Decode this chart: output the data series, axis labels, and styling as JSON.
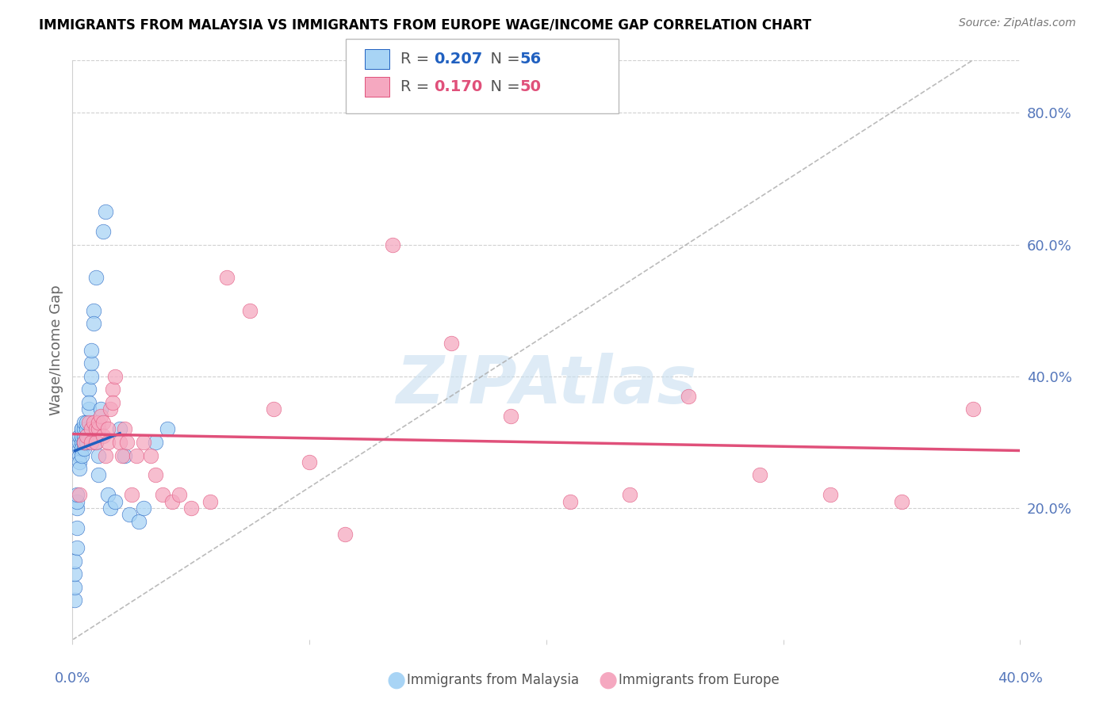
{
  "title": "IMMIGRANTS FROM MALAYSIA VS IMMIGRANTS FROM EUROPE WAGE/INCOME GAP CORRELATION CHART",
  "source": "Source: ZipAtlas.com",
  "ylabel": "Wage/Income Gap",
  "ytick_labels": [
    "80.0%",
    "60.0%",
    "40.0%",
    "20.0%"
  ],
  "ytick_positions": [
    0.8,
    0.6,
    0.4,
    0.2
  ],
  "xlim": [
    0.0,
    0.4
  ],
  "ylim": [
    0.0,
    0.88
  ],
  "malaysia_color": "#A8D4F5",
  "europe_color": "#F5A8C0",
  "malaysia_line_color": "#2060C0",
  "europe_line_color": "#E0507A",
  "dashed_line_color": "#AAAAAA",
  "watermark_text": "ZIPAtlas",
  "watermark_color": "#C8DFF0",
  "malaysia_R": 0.207,
  "malaysia_N": 56,
  "europe_R": 0.17,
  "europe_N": 50,
  "malaysia_points_x": [
    0.001,
    0.001,
    0.001,
    0.001,
    0.002,
    0.002,
    0.002,
    0.002,
    0.002,
    0.003,
    0.003,
    0.003,
    0.003,
    0.003,
    0.003,
    0.004,
    0.004,
    0.004,
    0.004,
    0.004,
    0.004,
    0.005,
    0.005,
    0.005,
    0.005,
    0.005,
    0.005,
    0.006,
    0.006,
    0.006,
    0.006,
    0.007,
    0.007,
    0.007,
    0.008,
    0.008,
    0.008,
    0.009,
    0.009,
    0.01,
    0.01,
    0.011,
    0.011,
    0.012,
    0.013,
    0.014,
    0.015,
    0.016,
    0.018,
    0.02,
    0.022,
    0.024,
    0.028,
    0.03,
    0.035,
    0.04
  ],
  "malaysia_points_y": [
    0.06,
    0.08,
    0.1,
    0.12,
    0.2,
    0.21,
    0.22,
    0.17,
    0.14,
    0.29,
    0.3,
    0.31,
    0.28,
    0.27,
    0.26,
    0.3,
    0.31,
    0.32,
    0.29,
    0.28,
    0.32,
    0.3,
    0.31,
    0.32,
    0.29,
    0.33,
    0.3,
    0.31,
    0.32,
    0.33,
    0.3,
    0.35,
    0.38,
    0.36,
    0.4,
    0.42,
    0.44,
    0.5,
    0.48,
    0.3,
    0.55,
    0.28,
    0.25,
    0.35,
    0.62,
    0.65,
    0.22,
    0.2,
    0.21,
    0.32,
    0.28,
    0.19,
    0.18,
    0.2,
    0.3,
    0.32
  ],
  "europe_points_x": [
    0.003,
    0.005,
    0.006,
    0.007,
    0.008,
    0.008,
    0.009,
    0.01,
    0.01,
    0.011,
    0.011,
    0.012,
    0.013,
    0.013,
    0.014,
    0.015,
    0.015,
    0.016,
    0.017,
    0.017,
    0.018,
    0.02,
    0.021,
    0.022,
    0.023,
    0.025,
    0.027,
    0.03,
    0.033,
    0.035,
    0.038,
    0.042,
    0.045,
    0.05,
    0.058,
    0.065,
    0.075,
    0.085,
    0.1,
    0.115,
    0.135,
    0.16,
    0.185,
    0.21,
    0.235,
    0.26,
    0.29,
    0.32,
    0.35,
    0.38
  ],
  "europe_points_y": [
    0.22,
    0.3,
    0.31,
    0.33,
    0.3,
    0.32,
    0.33,
    0.3,
    0.32,
    0.32,
    0.33,
    0.34,
    0.33,
    0.31,
    0.28,
    0.3,
    0.32,
    0.35,
    0.38,
    0.36,
    0.4,
    0.3,
    0.28,
    0.32,
    0.3,
    0.22,
    0.28,
    0.3,
    0.28,
    0.25,
    0.22,
    0.21,
    0.22,
    0.2,
    0.21,
    0.55,
    0.5,
    0.35,
    0.27,
    0.16,
    0.6,
    0.45,
    0.34,
    0.21,
    0.22,
    0.37,
    0.25,
    0.22,
    0.21,
    0.35
  ],
  "dashed_line_x": [
    0.0,
    0.38
  ],
  "dashed_line_y": [
    0.0,
    0.88
  ],
  "blue_line_x": [
    0.001,
    0.02
  ],
  "pink_line_x": [
    0.0,
    0.4
  ],
  "background_color": "#FFFFFF",
  "grid_color": "#D0D0D0",
  "tick_color": "#5577BB",
  "title_fontsize": 12,
  "axis_label_fontsize": 13,
  "tick_fontsize": 13,
  "legend_fontsize": 14
}
